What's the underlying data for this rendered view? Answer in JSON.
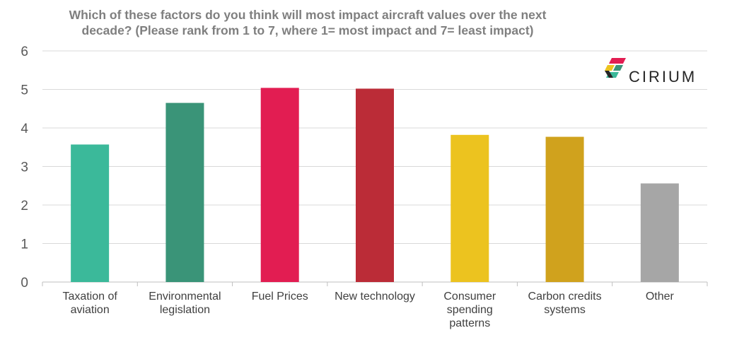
{
  "chart_data": {
    "type": "bar",
    "title_lines": [
      "Which of these factors do you think will most impact aircraft values over the next",
      "decade? (Please rank from 1 to 7, where 1= most impact and 7= least impact)"
    ],
    "categories": [
      [
        "Taxation of",
        "aviation"
      ],
      [
        "Environmental",
        "legislation"
      ],
      [
        "Fuel Prices"
      ],
      [
        "New technology"
      ],
      [
        "Consumer",
        "spending",
        "patterns"
      ],
      [
        "Carbon credits",
        "systems"
      ],
      [
        "Other"
      ]
    ],
    "values": [
      3.57,
      4.65,
      5.04,
      5.02,
      3.82,
      3.77,
      2.56
    ],
    "colors": [
      "#3bb99a",
      "#3a9478",
      "#e21d52",
      "#bb2c37",
      "#ecc31f",
      "#d0a21d",
      "#a6a6a6"
    ],
    "ylim": [
      0,
      6
    ],
    "yticks": [
      0,
      1,
      2,
      3,
      4,
      5,
      6
    ],
    "grid": true,
    "legend": "none"
  },
  "logo": {
    "text": "CIRIUM",
    "icon": "cirium-logo-icon"
  }
}
